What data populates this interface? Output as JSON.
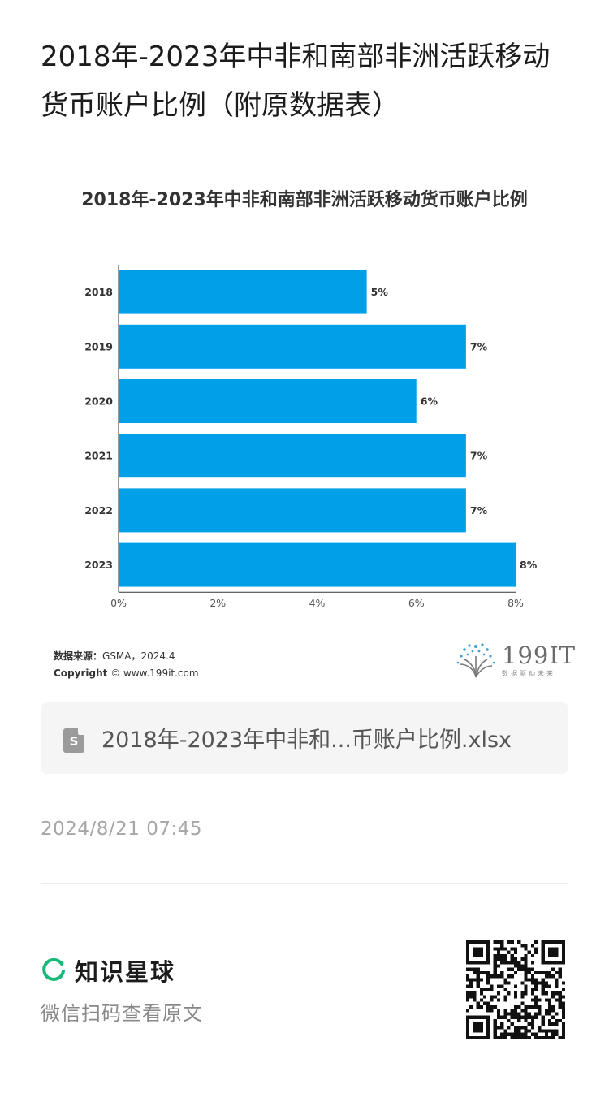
{
  "page": {
    "title": "2018年-2023年中非和南部非洲活跃移动货币账户比例（附原数据表）"
  },
  "chart_data": {
    "type": "bar",
    "orientation": "horizontal",
    "title": "2018年-2023年中非和南部非洲活跃移动货币账户比例",
    "categories": [
      "2018",
      "2019",
      "2020",
      "2021",
      "2022",
      "2023"
    ],
    "values": [
      5,
      7,
      6,
      7,
      7,
      8
    ],
    "value_labels": [
      "5%",
      "7%",
      "6%",
      "7%",
      "7%",
      "8%"
    ],
    "xlim": [
      0,
      8
    ],
    "xticks": [
      "0%",
      "2%",
      "4%",
      "6%",
      "8%"
    ],
    "bar_color": "#00a0e9",
    "grid": false
  },
  "source": {
    "label": "数据来源：",
    "text": "GSMA，2024.4",
    "copyright_label": "Copyright",
    "copyright_text": "© www.199it.com"
  },
  "brand": {
    "name": "199IT",
    "tagline": "数据驱动未来",
    "color": "#3aa0d8"
  },
  "attachment": {
    "icon": "spreadsheet-file-icon",
    "icon_letter": "S",
    "filename": "2018年-2023年中非和...币账户比例.xlsx"
  },
  "post": {
    "date": "2024/8/21 07:45"
  },
  "footer": {
    "app_name": "知识星球",
    "hint": "微信扫码查看原文",
    "accent": "#17b978"
  }
}
